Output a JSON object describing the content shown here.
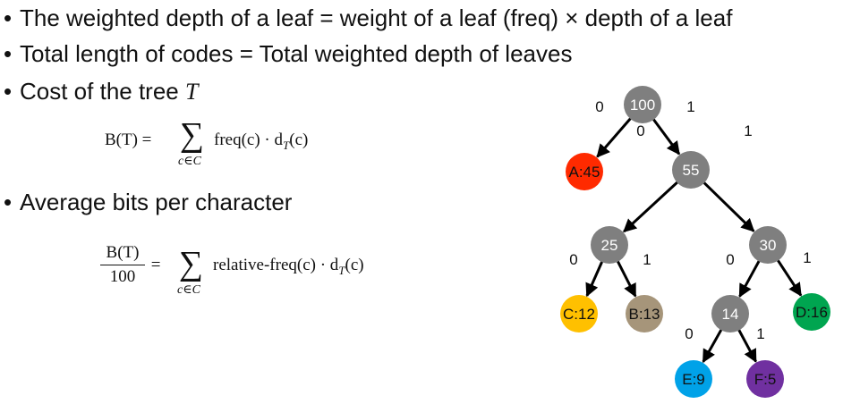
{
  "bullets": {
    "b1": "The weighted depth of a leaf = weight of a leaf (freq) × depth of a leaf",
    "b2": "Total length of codes = Total weighted depth of leaves",
    "b3": "Cost of the tree ",
    "b3_var": "T",
    "b4": "Average bits per character"
  },
  "formula1": {
    "lhs": "B(T) = ",
    "sum_symbol": "∑",
    "subscript": "c∈C",
    "term": "freq(c) · d",
    "term_sub": "T",
    "term_end": "(c)"
  },
  "formula2": {
    "numerator": "B(T)",
    "denominator": "100",
    "equals": " = ",
    "sum_symbol": "∑",
    "subscript": "c∈C",
    "term": "relative-freq(c) · d",
    "term_sub": "T",
    "term_end": "(c)"
  },
  "tree": {
    "nodes": [
      {
        "id": "n100",
        "label": "100",
        "color": "#7f7f7f"
      },
      {
        "id": "a45",
        "label": "A:45",
        "color": "#ff2a00"
      },
      {
        "id": "n55",
        "label": "55",
        "color": "#7f7f7f"
      },
      {
        "id": "n25",
        "label": "25",
        "color": "#7f7f7f"
      },
      {
        "id": "n30",
        "label": "30",
        "color": "#7f7f7f"
      },
      {
        "id": "c12",
        "label": "C:12",
        "color": "#ffc000"
      },
      {
        "id": "b13",
        "label": "B:13",
        "color": "#a6957a"
      },
      {
        "id": "n14",
        "label": "14",
        "color": "#7f7f7f"
      },
      {
        "id": "d16",
        "label": "D:16",
        "color": "#00a550"
      },
      {
        "id": "e9",
        "label": "E:9",
        "color": "#00a2e8"
      },
      {
        "id": "f5",
        "label": "F:5",
        "color": "#7030a0"
      }
    ],
    "edges": [
      {
        "from": "n100",
        "to": "a45",
        "bit": "0"
      },
      {
        "from": "n100",
        "to": "n55",
        "bit": "1"
      },
      {
        "from": "n55",
        "to": "n25",
        "bit": "0"
      },
      {
        "from": "n55",
        "to": "n30",
        "bit": "1"
      },
      {
        "from": "n25",
        "to": "c12",
        "bit": "0"
      },
      {
        "from": "n25",
        "to": "b13",
        "bit": "1"
      },
      {
        "from": "n30",
        "to": "n14",
        "bit": "0"
      },
      {
        "from": "n30",
        "to": "d16",
        "bit": "1"
      },
      {
        "from": "n14",
        "to": "e9",
        "bit": "0"
      },
      {
        "from": "n14",
        "to": "f5",
        "bit": "1"
      }
    ]
  }
}
